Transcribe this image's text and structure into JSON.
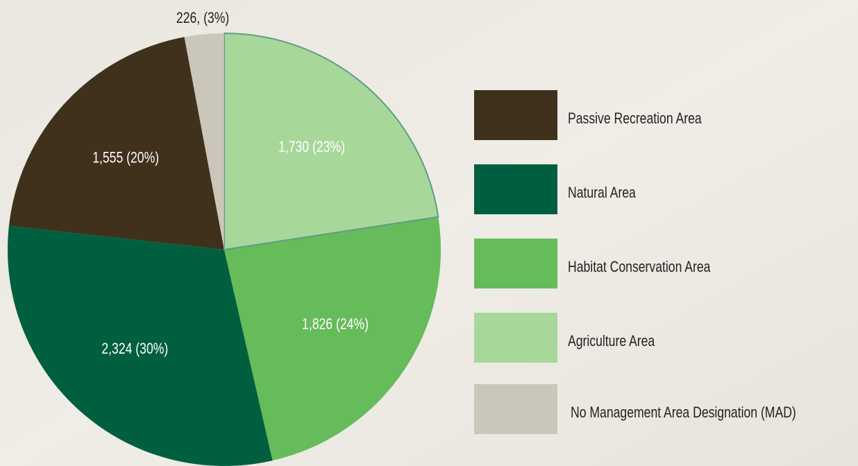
{
  "chart_data": {
    "type": "pie",
    "categories": [
      "Passive Recreation Area",
      "Natural Area",
      "Habitat Conservation Area",
      "Agriculture Area",
      "No Management Area Designation (MAD)"
    ],
    "values": [
      1555,
      2324,
      1826,
      1730,
      226
    ],
    "value_labels": [
      "1,555 (20%)",
      "2,324 (30%)",
      "1,826 (24%)",
      "1,730 (23%)",
      "226, (3%)"
    ],
    "colors": [
      "#3f311b",
      "#005f3f",
      "#66bb5a",
      "#a8d79a",
      "#c6c0b3"
    ],
    "legend": "right"
  }
}
